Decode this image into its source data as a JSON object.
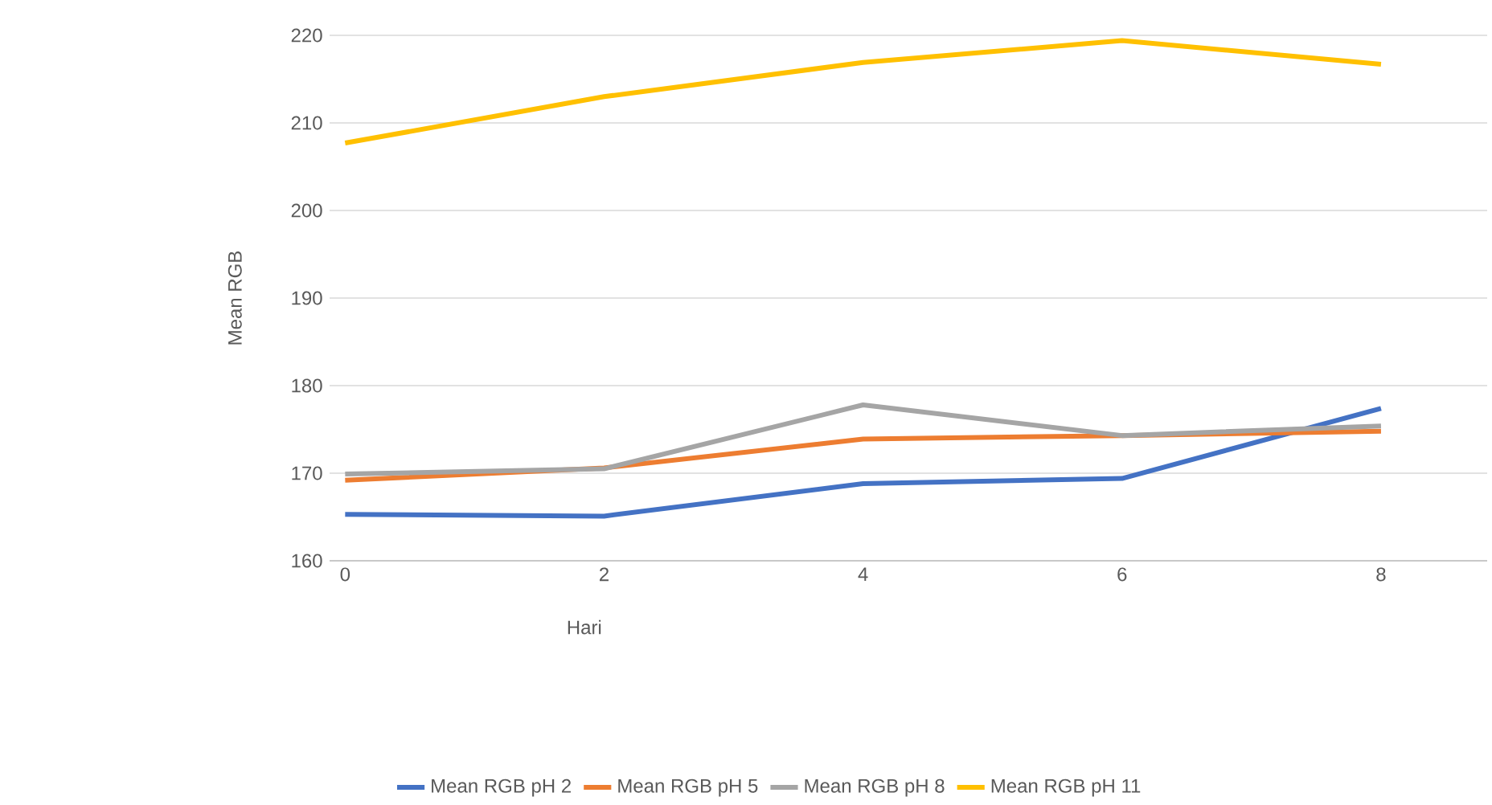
{
  "chart_data": {
    "type": "line",
    "xlabel": "Hari",
    "ylabel": "Mean RGB",
    "categories": [
      "0",
      "2",
      "4",
      "6",
      "8"
    ],
    "series": [
      {
        "name": "Mean RGB pH 2",
        "color": "#4472c4",
        "values": [
          165.3,
          165.1,
          168.8,
          169.4,
          177.4
        ]
      },
      {
        "name": "Mean RGB pH 5",
        "color": "#ed7d31",
        "values": [
          169.2,
          170.6,
          173.9,
          174.3,
          174.8
        ]
      },
      {
        "name": "Mean RGB pH 8",
        "color": "#a5a5a5",
        "values": [
          169.9,
          170.5,
          177.8,
          174.3,
          175.4
        ]
      },
      {
        "name": "Mean RGB pH 11",
        "color": "#ffc000",
        "values": [
          207.7,
          213.0,
          216.9,
          219.4,
          216.7
        ]
      }
    ],
    "ylim": [
      160,
      220
    ],
    "yticks": [
      160,
      170,
      180,
      190,
      200,
      210,
      220
    ],
    "grid": "y",
    "legend": "bottom",
    "marker": "none",
    "line_style": "solid"
  }
}
